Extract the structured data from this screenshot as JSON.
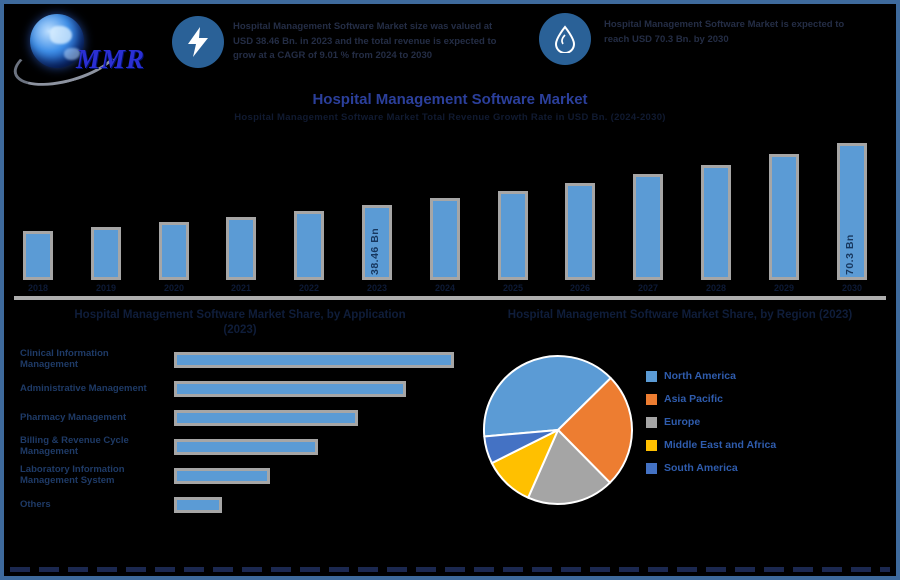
{
  "brand": {
    "logo_text": "MMR"
  },
  "header": {
    "badge1": {
      "icon": "lightning-icon",
      "text": "Hospital Management Software Market size was valued at USD 38.46 Bn. in 2023 and the total revenue is expected to grow at a CAGR of 9.01 % from 2024 to 2030"
    },
    "badge2": {
      "icon": "water-drop-icon",
      "text": "Hospital Management Software Market is expected to reach USD 70.3 Bn. by 2030"
    }
  },
  "page": {
    "title": "Hospital Management Software Market",
    "subtitle": "Hospital Management Software Market Total Revenue Growth Rate in USD Bn. (2024-2030)"
  },
  "chart_data": [
    {
      "type": "bar",
      "title": "Hospital Management Software Market",
      "subtitle": "Hospital Management Software Market Total Revenue Growth Rate in USD Bn. (2024-2030)",
      "ylabel": "USD Bn",
      "categories": [
        "2018",
        "2019",
        "2020",
        "2021",
        "2022",
        "2023",
        "2024",
        "2025",
        "2026",
        "2027",
        "2028",
        "2029",
        "2030"
      ],
      "values": [
        25.0,
        27.3,
        29.7,
        32.4,
        35.3,
        38.46,
        41.9,
        45.7,
        49.8,
        54.3,
        59.2,
        64.6,
        70.3
      ],
      "data_labels": [
        "",
        "",
        "",
        "",
        "",
        "38.46 Bn",
        "",
        "",
        "",
        "",
        "",
        "",
        "70.3 Bn"
      ],
      "bar_color": "#5B9BD5",
      "bar_border": "#A6A6A6",
      "label_color": "#17375E",
      "grid": false
    },
    {
      "type": "bar",
      "orientation": "horizontal",
      "title_line1": "Hospital Management Software Market Share, by Application",
      "title_line2": "(2023)",
      "categories": [
        "Clinical Information Management",
        "Administrative Management",
        "Pharmacy Management",
        "Billing & Revenue Cycle Management",
        "Laboratory Information Management System",
        "Others"
      ],
      "values": [
        35,
        29,
        23,
        18,
        12,
        6
      ],
      "unit": "% share (est.)",
      "bar_color": "#5B9BD5",
      "bar_border": "#A6A6A6"
    },
    {
      "type": "pie",
      "title": "Hospital Management Software Market Share, by Region (2023)",
      "legend_position": "right",
      "start_angle": 265,
      "slices": [
        {
          "label": "North America",
          "value": 39,
          "color": "#5B9BD5"
        },
        {
          "label": "Asia Pacific",
          "value": 25,
          "color": "#ED7D31"
        },
        {
          "label": "Europe",
          "value": 19,
          "color": "#A5A5A5"
        },
        {
          "label": "Middle East and Africa",
          "value": 11,
          "color": "#FFC000"
        },
        {
          "label": "South America",
          "value": 6,
          "color": "#4472C4"
        }
      ]
    }
  ],
  "colors": {
    "background": "#000000",
    "frame_border": "#3e6a9c",
    "accent_bar_blue": "#5B9BD5",
    "bar_border_gray": "#A6A6A6",
    "title_blue": "#2b3f9b",
    "badge_circle_blue": "#2a6197",
    "legend_text_blue": "#2f5cad",
    "baseline_gray": "#aeaeae"
  }
}
